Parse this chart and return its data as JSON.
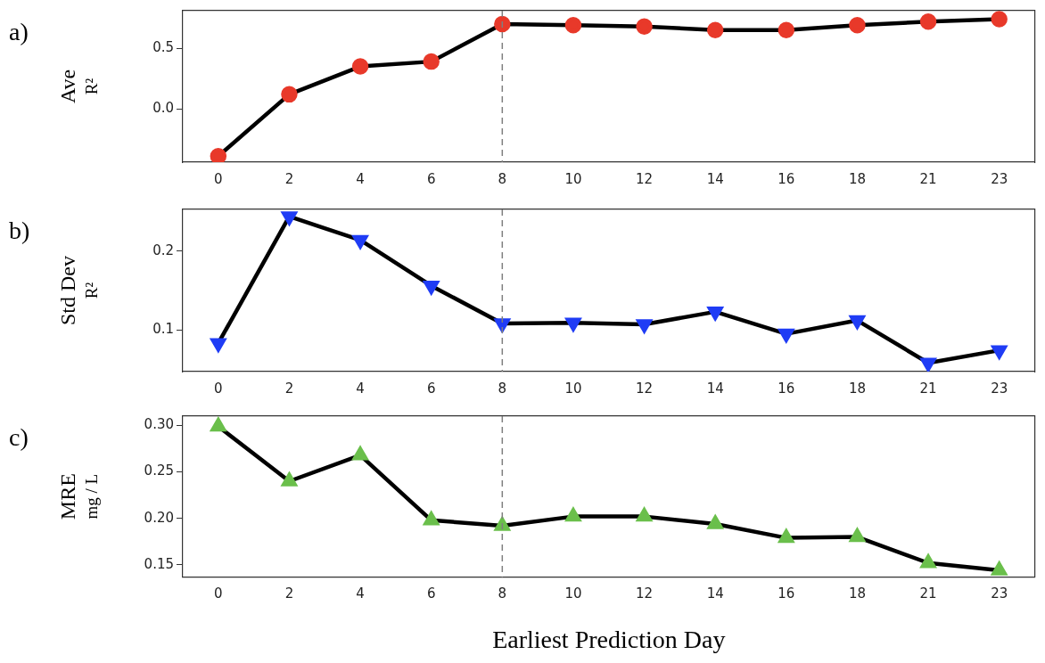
{
  "chart_data": [
    {
      "type": "line",
      "categories": [
        "0",
        "2",
        "4",
        "6",
        "8",
        "10",
        "12",
        "14",
        "16",
        "18",
        "21",
        "23"
      ],
      "ylabel": "Ave\nR²",
      "annotations": [
        "a)"
      ],
      "marker": "circle",
      "ylim": [
        -0.44,
        0.81
      ],
      "yticks": [
        {
          "value": 0,
          "label": "0.0"
        },
        0.5
      ],
      "grid": false,
      "legend": false,
      "series": [
        {
          "color": "#e8392a",
          "values": [
            -0.39,
            0.12,
            0.35,
            0.39,
            0.7,
            0.69,
            0.68,
            0.65,
            0.65,
            0.69,
            0.72,
            0.74
          ]
        }
      ],
      "ref_lines": [
        {
          "axis": "x",
          "value": "8",
          "color": "#7f7f7f",
          "line_style": "dashed"
        }
      ]
    },
    {
      "type": "line",
      "categories": [
        "0",
        "2",
        "4",
        "6",
        "8",
        "10",
        "12",
        "14",
        "16",
        "18",
        "21",
        "23"
      ],
      "ylabel": "Std Dev\nR²",
      "annotations": [
        "b)"
      ],
      "marker": "triangle-down",
      "ylim": [
        0.047,
        0.253
      ],
      "yticks": [
        0.1,
        0.2
      ],
      "grid": false,
      "legend": false,
      "series": [
        {
          "color": "#1f3cf5",
          "values": [
            0.083,
            0.244,
            0.214,
            0.156,
            0.108,
            0.109,
            0.107,
            0.123,
            0.095,
            0.112,
            0.058,
            0.074
          ]
        }
      ],
      "ref_lines": [
        {
          "axis": "x",
          "value": "8",
          "color": "#7f7f7f",
          "line_style": "dashed"
        }
      ]
    },
    {
      "type": "line",
      "categories": [
        "0",
        "2",
        "4",
        "6",
        "8",
        "10",
        "12",
        "14",
        "16",
        "18",
        "21",
        "23"
      ],
      "ylabel": "MRE\nmg / L",
      "xlabel": "Earliest Prediction Day",
      "annotations": [
        "c)"
      ],
      "marker": "triangle",
      "ylim": [
        0.137,
        0.31
      ],
      "yticks": [
        {
          "value": 0.15,
          "label": "0.15"
        },
        {
          "value": 0.2,
          "label": "0.20"
        },
        {
          "value": 0.25,
          "label": "0.25"
        },
        {
          "value": 0.3,
          "label": "0.30"
        }
      ],
      "grid": false,
      "legend": false,
      "series": [
        {
          "color": "#6abf4b",
          "values": [
            0.299,
            0.24,
            0.268,
            0.198,
            0.192,
            0.202,
            0.202,
            0.194,
            0.179,
            0.18,
            0.152,
            0.144
          ]
        }
      ],
      "ref_lines": [
        {
          "axis": "x",
          "value": "8",
          "color": "#7f7f7f",
          "line_style": "dashed"
        }
      ]
    }
  ]
}
